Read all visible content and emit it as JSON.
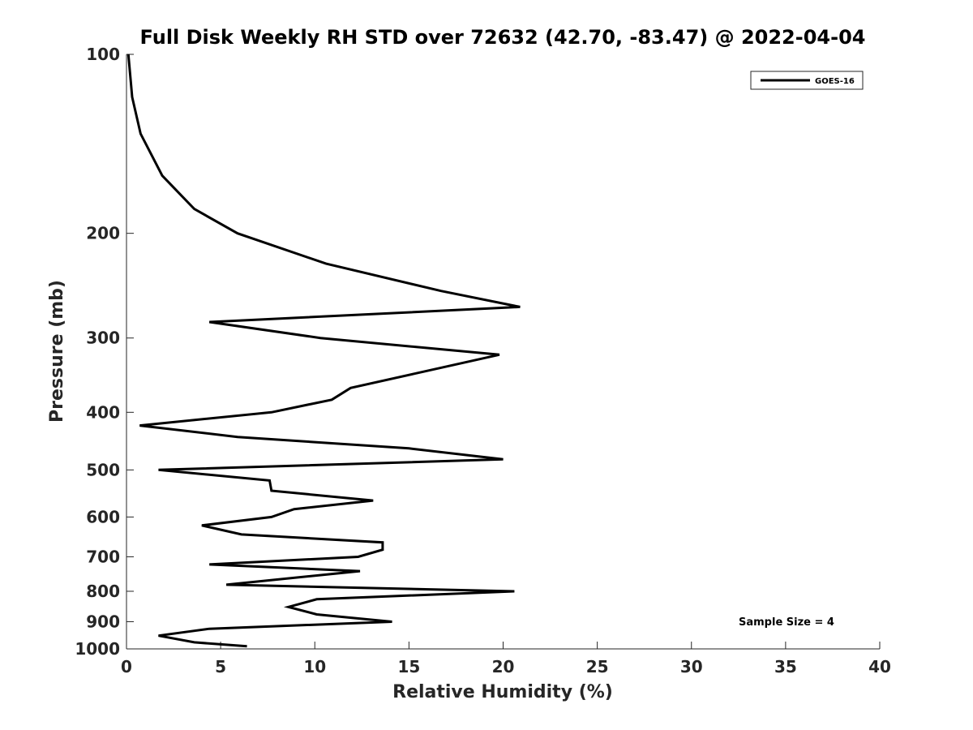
{
  "chart_data": {
    "type": "line",
    "title": "Full Disk Weekly RH STD over 72632 (42.70, -83.47) @ 2022-04-04",
    "xlabel": "Relative Humidity (%)",
    "ylabel": "Pressure (mb)",
    "xlim": [
      0,
      40
    ],
    "ylim": [
      100,
      1000
    ],
    "yscale": "log",
    "yreversed": true,
    "xticks": [
      0,
      5,
      10,
      15,
      20,
      25,
      30,
      35,
      40
    ],
    "yticks": [
      100,
      200,
      300,
      400,
      500,
      600,
      700,
      800,
      900,
      1000
    ],
    "legend": {
      "location": "top-right",
      "entries": [
        "GOES-16"
      ]
    },
    "annotation": "Sample Size = 4",
    "series": [
      {
        "name": "GOES-16",
        "color": "#000000",
        "points": [
          [
            0.1,
            100
          ],
          [
            0.3,
            118
          ],
          [
            0.75,
            136
          ],
          [
            1.9,
            160
          ],
          [
            3.6,
            182
          ],
          [
            5.9,
            200
          ],
          [
            10.6,
            225
          ],
          [
            16.7,
            250
          ],
          [
            20.9,
            266
          ],
          [
            4.4,
            282
          ],
          [
            10.3,
            300
          ],
          [
            19.8,
            320
          ],
          [
            15.2,
            345
          ],
          [
            11.9,
            364
          ],
          [
            10.9,
            381
          ],
          [
            7.7,
            400
          ],
          [
            0.7,
            421
          ],
          [
            5.9,
            440
          ],
          [
            15.0,
            460
          ],
          [
            20.0,
            480
          ],
          [
            1.7,
            500
          ],
          [
            7.6,
            521
          ],
          [
            7.7,
            542
          ],
          [
            13.1,
            563
          ],
          [
            8.9,
            582
          ],
          [
            7.7,
            600
          ],
          [
            4.0,
            620
          ],
          [
            6.1,
            642
          ],
          [
            13.6,
            662
          ],
          [
            13.6,
            681
          ],
          [
            12.3,
            700
          ],
          [
            4.4,
            721
          ],
          [
            12.4,
            740
          ],
          [
            5.3,
            780
          ],
          [
            20.6,
            800
          ],
          [
            10.1,
            825
          ],
          [
            8.6,
            850
          ],
          [
            10.1,
            875
          ],
          [
            14.1,
            900
          ],
          [
            4.4,
            925
          ],
          [
            1.7,
            950
          ],
          [
            3.6,
            975
          ],
          [
            6.4,
            990
          ]
        ]
      }
    ]
  }
}
